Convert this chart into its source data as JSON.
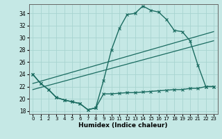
{
  "xlabel": "Humidex (Indice chaleur)",
  "background_color": "#c5e8e5",
  "grid_color": "#a8d4d0",
  "line_color": "#1a6b60",
  "xlim": [
    -0.5,
    23.5
  ],
  "ylim": [
    17.5,
    35.5
  ],
  "xticks": [
    0,
    1,
    2,
    3,
    4,
    5,
    6,
    7,
    8,
    9,
    10,
    11,
    12,
    13,
    14,
    15,
    16,
    17,
    18,
    19,
    20,
    21,
    22,
    23
  ],
  "yticks": [
    18,
    20,
    22,
    24,
    26,
    28,
    30,
    32,
    34
  ],
  "curve1_x": [
    0,
    1,
    2,
    3,
    4,
    5,
    6,
    7,
    8,
    9,
    10,
    11,
    12,
    13,
    14,
    15,
    16,
    17,
    18,
    19,
    20,
    21,
    22,
    23
  ],
  "curve1_y": [
    24.0,
    22.5,
    21.5,
    20.2,
    19.8,
    19.5,
    19.2,
    18.2,
    18.5,
    23.0,
    28.0,
    31.5,
    33.8,
    34.0,
    35.2,
    34.5,
    34.2,
    33.0,
    31.2,
    31.0,
    29.5,
    25.5,
    22.0,
    22.0
  ],
  "curve2_x": [
    0,
    1,
    2,
    3,
    4,
    5,
    6,
    7,
    8,
    9,
    10,
    11,
    12,
    13,
    14,
    15,
    16,
    17,
    18,
    19,
    20,
    21,
    22,
    23
  ],
  "curve2_y": [
    24.0,
    22.5,
    21.5,
    20.2,
    19.8,
    19.5,
    19.2,
    18.2,
    18.5,
    20.8,
    20.8,
    20.9,
    21.0,
    21.0,
    21.1,
    21.2,
    21.3,
    21.4,
    21.5,
    21.5,
    21.7,
    21.7,
    22.0,
    22.0
  ],
  "line1_x": [
    0,
    23
  ],
  "line1_y": [
    22.5,
    31.0
  ],
  "line2_x": [
    0,
    23
  ],
  "line2_y": [
    21.5,
    29.5
  ]
}
